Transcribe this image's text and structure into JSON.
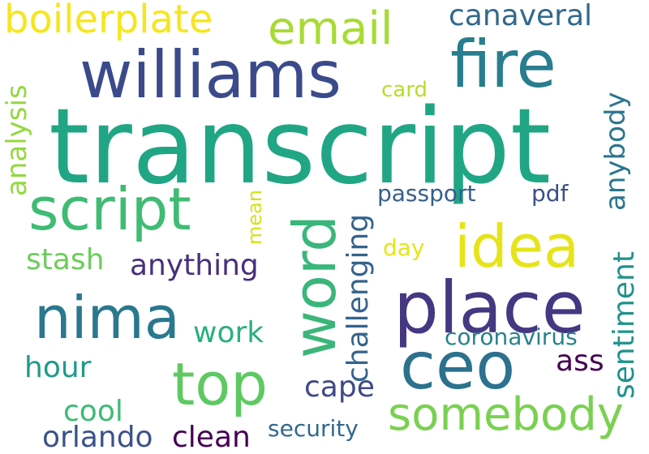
{
  "words": [
    {
      "text": "transcript",
      "color": "#21a685"
    },
    {
      "text": "williams",
      "color": "#3b4a8b"
    },
    {
      "text": "fire",
      "color": "#287d8e"
    },
    {
      "text": "email",
      "color": "#a8db34"
    },
    {
      "text": "boilerplate",
      "color": "#f5e61e"
    },
    {
      "text": "canaveral",
      "color": "#31688e"
    },
    {
      "text": "card",
      "color": "#b6de2b"
    },
    {
      "text": "analysis",
      "color": "#94d840"
    },
    {
      "text": "anybody",
      "color": "#2b758e"
    },
    {
      "text": "script",
      "color": "#3fbc73"
    },
    {
      "text": "word",
      "color": "#3bb67a"
    },
    {
      "text": "idea",
      "color": "#e6e419"
    },
    {
      "text": "passport",
      "color": "#355f8d"
    },
    {
      "text": "pdf",
      "color": "#3c4f8a"
    },
    {
      "text": "mean",
      "color": "#d5e21a"
    },
    {
      "text": "challenging",
      "color": "#35638d"
    },
    {
      "text": "stash",
      "color": "#6ccd5a"
    },
    {
      "text": "anything",
      "color": "#472f7d"
    },
    {
      "text": "day",
      "color": "#e7e419"
    },
    {
      "text": "nima",
      "color": "#2a788e"
    },
    {
      "text": "place",
      "color": "#453781"
    },
    {
      "text": "sentiment",
      "color": "#20928c"
    },
    {
      "text": "work",
      "color": "#2aaf7f"
    },
    {
      "text": "coronavirus",
      "color": "#26828e"
    },
    {
      "text": "ceo",
      "color": "#2c718e"
    },
    {
      "text": "hour",
      "color": "#1f9a8a"
    },
    {
      "text": "top",
      "color": "#5ec962"
    },
    {
      "text": "ass",
      "color": "#440154"
    },
    {
      "text": "cape",
      "color": "#3e4989"
    },
    {
      "text": "cool",
      "color": "#3dbc74"
    },
    {
      "text": "somebody",
      "color": "#7ad151"
    },
    {
      "text": "orlando",
      "color": "#3b528b"
    },
    {
      "text": "clean",
      "color": "#440154"
    },
    {
      "text": "security",
      "color": "#31688e"
    }
  ]
}
